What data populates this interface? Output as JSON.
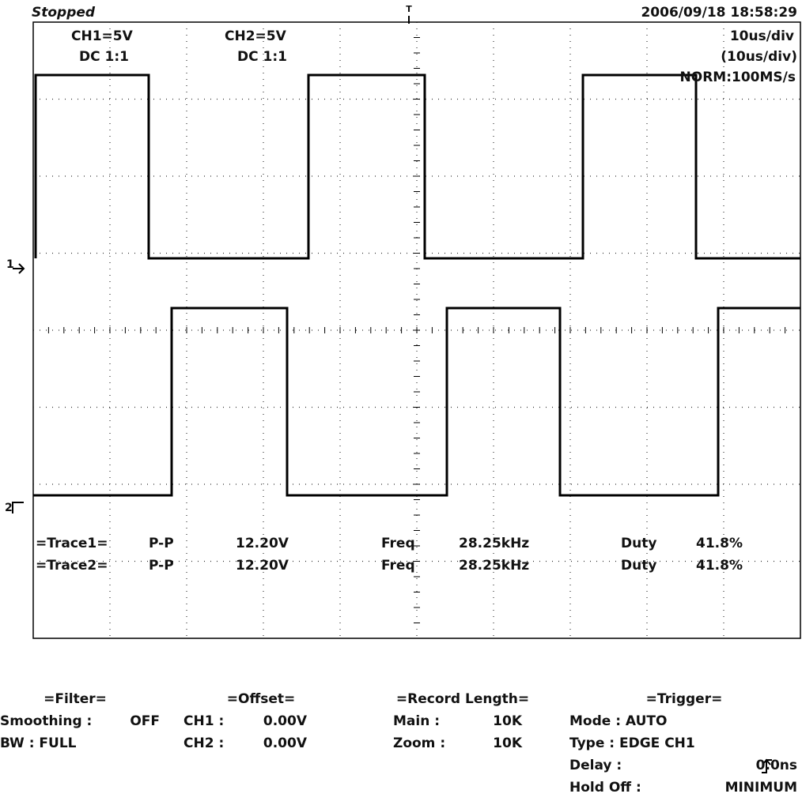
{
  "header": {
    "status": "Stopped",
    "datetime": "2006/09/18  18:58:29"
  },
  "markers": {
    "trigger": "T",
    "ch1": "1",
    "ch2": "2"
  },
  "channels": [
    {
      "scale": "CH1=5V",
      "coupling": "DC  1:1"
    },
    {
      "scale": "CH2=5V",
      "coupling": "DC  1:1"
    }
  ],
  "timebase": {
    "main": "10us/div",
    "zoom": "(10us/div)",
    "mode": "NORM:100MS/s"
  },
  "measurements": [
    [
      "=Trace1=",
      "P-P",
      "12.20V",
      "Freq",
      "28.25kHz",
      "Duty",
      "41.8%"
    ],
    [
      "=Trace2=",
      "P-P",
      "12.20V",
      "Freq",
      "28.25kHz",
      "Duty",
      "41.8%"
    ]
  ],
  "settings": [
    {
      "title": "=Filter=",
      "rows": [
        [
          "Smoothing :",
          "OFF"
        ],
        [
          "BW : FULL",
          ""
        ]
      ]
    },
    {
      "title": "=Offset=",
      "rows": [
        [
          "CH1 :",
          "0.00V"
        ],
        [
          "CH2 :",
          "0.00V"
        ]
      ]
    },
    {
      "title": "=Record Length=",
      "rows": [
        [
          "Main :",
          "10K"
        ],
        [
          "Zoom :",
          "10K"
        ]
      ]
    },
    {
      "title": "=Trigger=",
      "rows": [
        [
          "Mode : AUTO",
          ""
        ],
        [
          "Type : EDGE CH1",
          ""
        ],
        [
          "Delay :",
          "0.0ns"
        ],
        [
          "Hold Off :",
          "MINIMUM"
        ]
      ]
    }
  ]
}
